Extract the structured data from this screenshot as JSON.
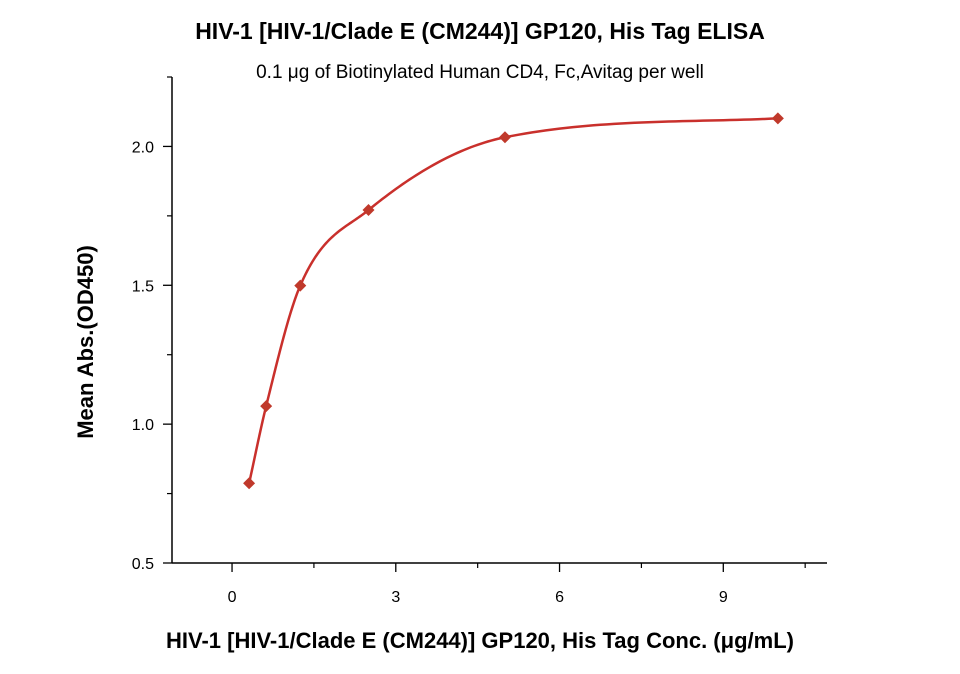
{
  "chart_data": {
    "type": "scatter",
    "title": "HIV-1 [HIV-1/Clade E (CM244)] GP120, His Tag ELISA",
    "subtitle": "0.1 μg of Biotinylated Human CD4, Fc,Avitag per well",
    "xlabel": "HIV-1 [HIV-1/Clade E (CM244)] GP120, His Tag Conc. (μg/mL)",
    "ylabel": "Mean Abs.(OD450)",
    "xlim": [
      -1.1,
      10.9
    ],
    "ylim": [
      0.5,
      2.25
    ],
    "x_ticks": [
      0,
      3,
      6,
      9
    ],
    "x_tick_labels": [
      "0",
      "3",
      "6",
      "9"
    ],
    "y_ticks": [
      0.5,
      1.0,
      1.5,
      2.0
    ],
    "y_tick_labels": [
      "0.5",
      "1.0",
      "1.5",
      "2.0"
    ],
    "grid": false,
    "series": [
      {
        "x": [
          0.3125,
          0.625,
          1.25,
          2.5,
          5,
          10
        ],
        "y": [
          0.787,
          1.065,
          1.499,
          1.771,
          2.033,
          2.101
        ],
        "fit": "smooth curve"
      }
    ],
    "colors": {
      "marker": "#c0392b",
      "curve": "#c9302c",
      "axis": "#000000"
    }
  }
}
